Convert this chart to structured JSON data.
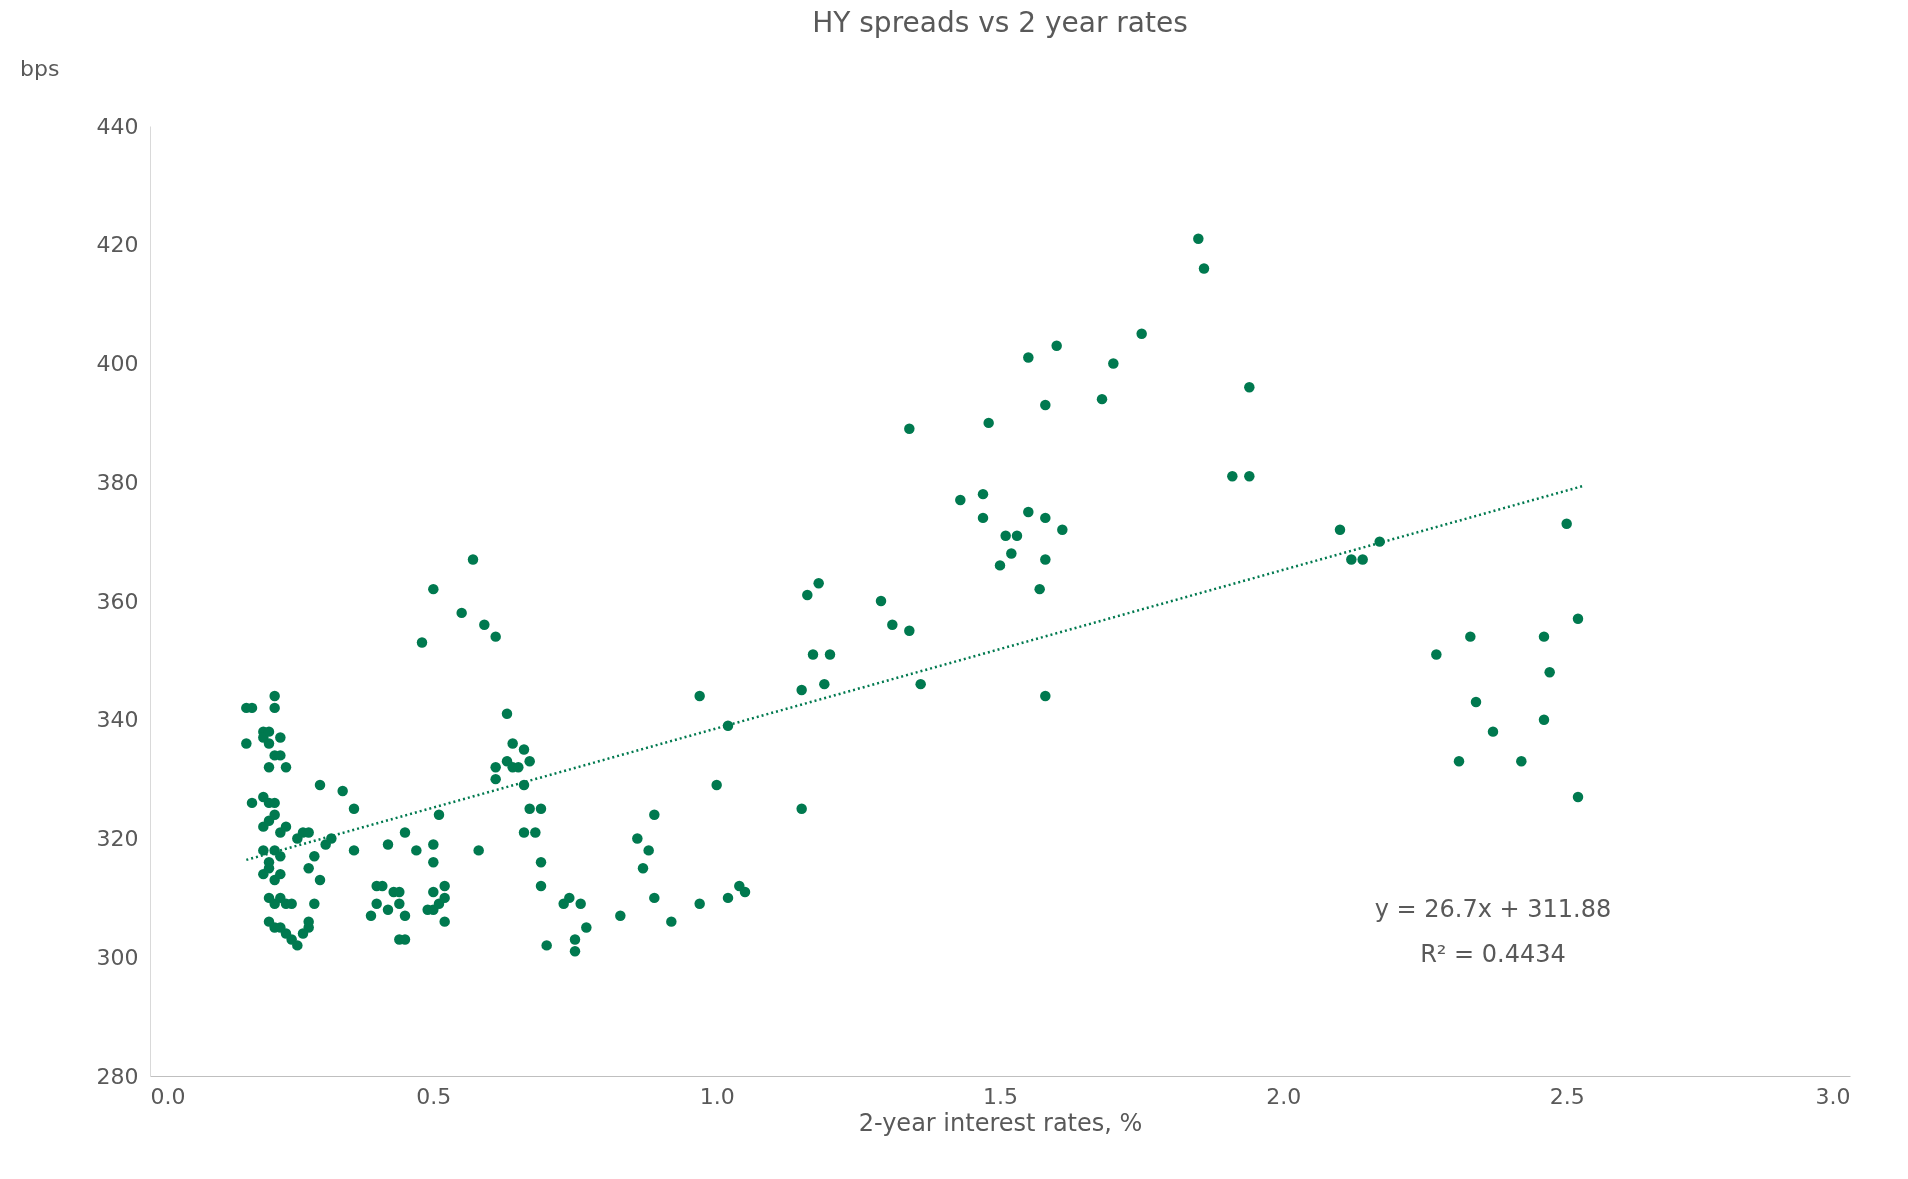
{
  "chart_data": {
    "type": "scatter",
    "title": "HY spreads vs 2 year rates",
    "xlabel": "2-year interest rates, %",
    "ylabel": "bps",
    "xlim": [
      0,
      3
    ],
    "xticks": [
      {
        "value": 0,
        "label": "0.0"
      },
      {
        "value": 0.5,
        "label": "0.5"
      },
      {
        "value": 1,
        "label": "1.0"
      },
      {
        "value": 1.5,
        "label": "1.5"
      },
      {
        "value": 2,
        "label": "2.0"
      },
      {
        "value": 2.5,
        "label": "2.5"
      },
      {
        "value": 3,
        "label": "3.0"
      }
    ],
    "ylim": [
      280,
      440
    ],
    "yticks": [
      280,
      300,
      320,
      340,
      360,
      380,
      400,
      420,
      440
    ],
    "grid": false,
    "annotations": [
      "y = 26.7x + 311.88",
      "R² = 0.4434"
    ],
    "series": [
      {
        "color": "#00794f",
        "marker": "circle",
        "x": [
          0.17,
          0.18,
          0.17,
          0.18,
          0.2,
          0.2,
          0.21,
          0.21,
          0.22,
          0.22,
          0.23,
          0.22,
          0.23,
          0.24,
          0.21,
          0.2,
          0.21,
          0.22,
          0.2,
          0.21,
          0.22,
          0.23,
          0.24,
          0.2,
          0.21,
          0.22,
          0.23,
          0.2,
          0.21,
          0.22,
          0.23,
          0.21,
          0.22,
          0.23,
          0.24,
          0.25,
          0.21,
          0.22,
          0.23,
          0.24,
          0.25,
          0.26,
          0.27,
          0.28,
          0.28,
          0.26,
          0.27,
          0.28,
          0.28,
          0.29,
          0.29,
          0.3,
          0.3,
          0.31,
          0.32,
          0.34,
          0.36,
          0.36,
          0.39,
          0.4,
          0.4,
          0.41,
          0.42,
          0.42,
          0.43,
          0.44,
          0.44,
          0.44,
          0.45,
          0.45,
          0.45,
          0.47,
          0.48,
          0.5,
          0.49,
          0.5,
          0.5,
          0.5,
          0.5,
          0.51,
          0.51,
          0.52,
          0.52,
          0.52,
          0.55,
          0.57,
          0.58,
          0.59,
          0.61,
          0.61,
          0.61,
          0.63,
          0.63,
          0.64,
          0.64,
          0.65,
          0.66,
          0.66,
          0.67,
          0.66,
          0.67,
          0.68,
          0.69,
          0.69,
          0.69,
          0.7,
          0.73,
          0.74,
          0.75,
          0.75,
          0.76,
          0.77,
          0.83,
          0.86,
          0.87,
          0.88,
          0.89,
          0.89,
          0.92,
          0.97,
          0.97,
          1.0,
          1.02,
          1.02,
          1.04,
          1.05,
          1.15,
          1.15,
          1.16,
          1.17,
          1.18,
          1.19,
          1.2,
          1.29,
          1.31,
          1.34,
          1.34,
          1.36,
          1.43,
          1.47,
          1.47,
          1.48,
          1.5,
          1.51,
          1.52,
          1.53,
          1.55,
          1.55,
          1.57,
          1.58,
          1.58,
          1.58,
          1.58,
          1.6,
          1.61,
          1.68,
          1.7,
          1.75,
          1.85,
          1.86,
          1.91,
          1.94,
          1.94,
          2.1,
          2.12,
          2.14,
          2.17,
          2.27,
          2.31,
          2.33,
          2.34,
          2.37,
          2.42,
          2.46,
          2.46,
          2.47,
          2.5,
          2.52,
          2.52
        ],
        "values": [
          342,
          342,
          336,
          326,
          338,
          337,
          338,
          336,
          344,
          342,
          337,
          334,
          334,
          332,
          332,
          327,
          326,
          326,
          322,
          323,
          324,
          321,
          322,
          318,
          316,
          318,
          317,
          314,
          315,
          313,
          314,
          310,
          309,
          310,
          309,
          309,
          306,
          305,
          305,
          304,
          303,
          302,
          304,
          305,
          306,
          320,
          321,
          321,
          315,
          317,
          309,
          313,
          329,
          319,
          320,
          328,
          325,
          318,
          307,
          312,
          309,
          312,
          308,
          319,
          311,
          311,
          309,
          303,
          303,
          307,
          321,
          318,
          353,
          362,
          308,
          308,
          311,
          316,
          319,
          324,
          309,
          306,
          310,
          312,
          358,
          367,
          318,
          356,
          354,
          332,
          330,
          341,
          333,
          336,
          332,
          332,
          335,
          329,
          333,
          321,
          325,
          321,
          325,
          316,
          312,
          302,
          309,
          310,
          303,
          301,
          309,
          305,
          307,
          320,
          315,
          318,
          324,
          310,
          306,
          309,
          344,
          329,
          339,
          310,
          312,
          311,
          345,
          325,
          361,
          351,
          363,
          346,
          351,
          360,
          356,
          355,
          389,
          346,
          377,
          378,
          374,
          390,
          366,
          371,
          368,
          371,
          401,
          375,
          362,
          374,
          367,
          344,
          393,
          403,
          372,
          394,
          400,
          405,
          421,
          416,
          381,
          396,
          381,
          372,
          367,
          367,
          370,
          351,
          333,
          354,
          343,
          338,
          333,
          340,
          354,
          348,
          373,
          357,
          327
        ]
      },
      {
        "type": "line",
        "color": "#00794f",
        "line_style": "dotted",
        "x": [
          0.17,
          2.53
        ],
        "values": [
          316.4,
          379.4
        ]
      }
    ]
  }
}
